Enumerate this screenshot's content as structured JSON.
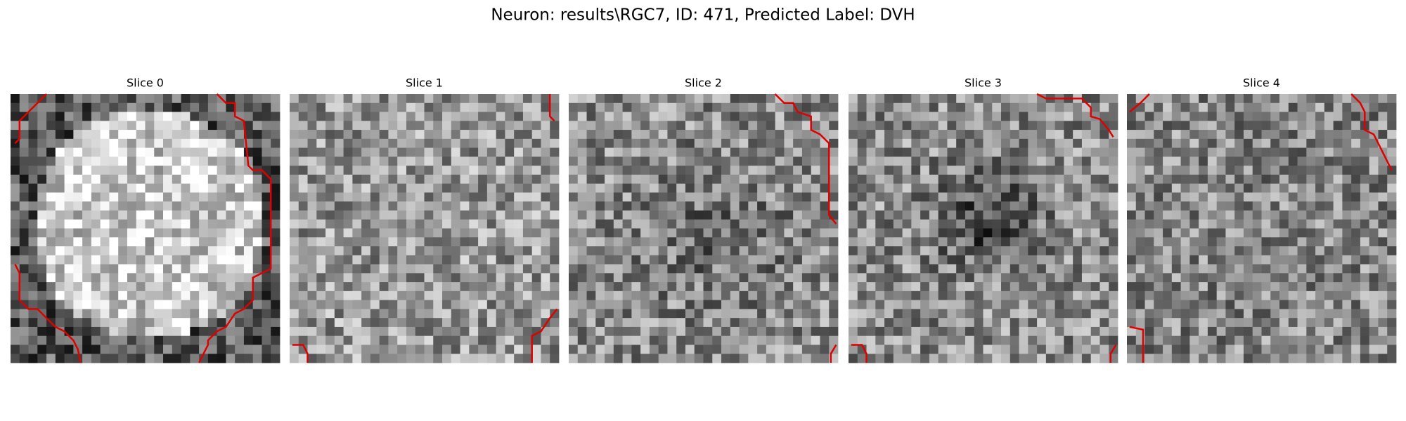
{
  "title": "Neuron: results\\RGC7, ID: 471, Predicted Label: DVH",
  "panels": [
    {
      "title": "Slice 0"
    },
    {
      "title": "Slice 1"
    },
    {
      "title": "Slice 2"
    },
    {
      "title": "Slice 3"
    },
    {
      "title": "Slice 4"
    }
  ]
}
